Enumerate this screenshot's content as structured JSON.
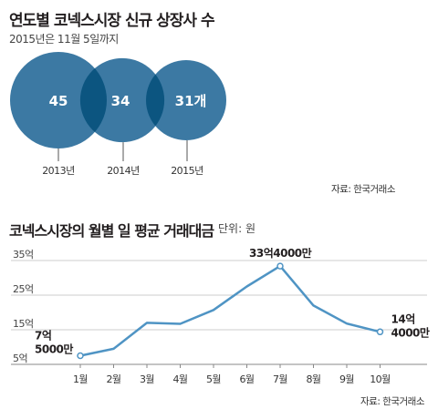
{
  "venn": {
    "title": "연도별 코넥스시장 신규 상장사 수",
    "subtitle": "2015년은 11월 5일까지",
    "source": "자료: 한국거래소",
    "circle_color": "#3c79a3",
    "overlap_color": "#0c5580",
    "chart_data": {
      "type": "bar",
      "categories": [
        "2013년",
        "2014년",
        "2015년"
      ],
      "values": [
        45,
        34,
        31
      ],
      "value_labels": [
        "45",
        "34",
        "31개"
      ]
    }
  },
  "line": {
    "title": "코넥스시장의 월별 일 평균 거래대금",
    "unit": "단위: 원",
    "source": "자료: 한국거래소",
    "line_color": "#4f94c4",
    "chart_data": {
      "type": "line",
      "categories": [
        "1월",
        "2월",
        "3월",
        "4월",
        "5월",
        "6월",
        "7월",
        "8월",
        "9월",
        "10월"
      ],
      "values": [
        7.5,
        9.5,
        17.0,
        16.7,
        20.7,
        27.5,
        33.4,
        22.0,
        16.8,
        14.4
      ],
      "y_ticks": [
        5,
        15,
        25,
        35
      ],
      "y_tick_labels": [
        "5억",
        "15억",
        "25억",
        "35억"
      ],
      "ylim": [
        5,
        35
      ],
      "grid": true,
      "annotations": [
        {
          "index": 0,
          "lines": [
            "7억",
            "5000만"
          ]
        },
        {
          "index": 6,
          "lines": [
            "33억4000만"
          ]
        },
        {
          "index": 9,
          "lines": [
            "14억",
            "4000만"
          ]
        }
      ]
    }
  }
}
